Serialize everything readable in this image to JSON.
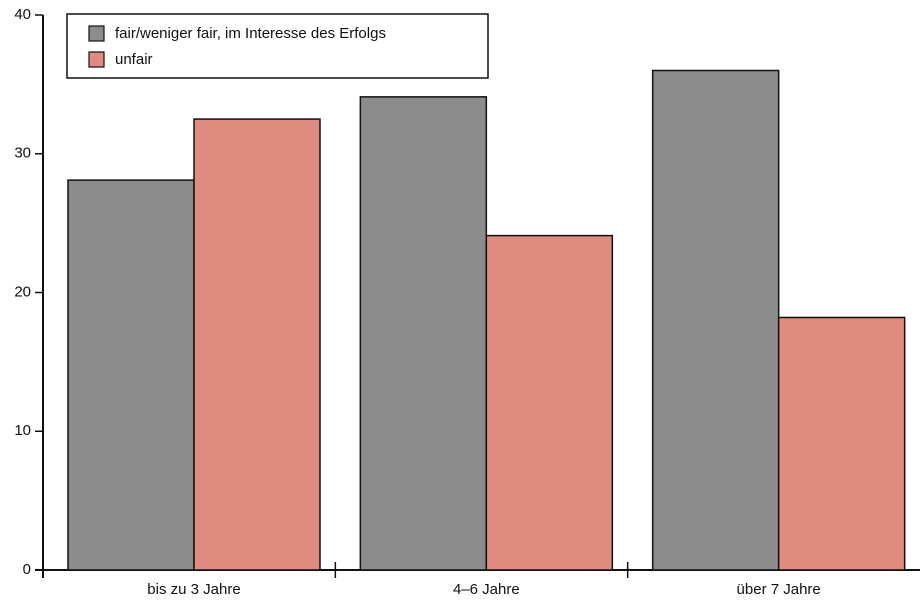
{
  "chart_data": {
    "type": "bar",
    "categories": [
      "bis zu 3 Jahre",
      "4–6 Jahre",
      "über 7 Jahre"
    ],
    "series": [
      {
        "name": "fair/weniger fair, im Interesse des Erfolgs",
        "color": "#8c8c8c",
        "values": [
          28.1,
          34.1,
          36
        ]
      },
      {
        "name": "unfair",
        "color": "#e08a80",
        "values": [
          32.5,
          24.1,
          18.2
        ]
      }
    ],
    "ylim": [
      0,
      40
    ],
    "yticks": [
      0,
      10,
      20,
      30,
      40
    ],
    "legend": "upper left"
  }
}
